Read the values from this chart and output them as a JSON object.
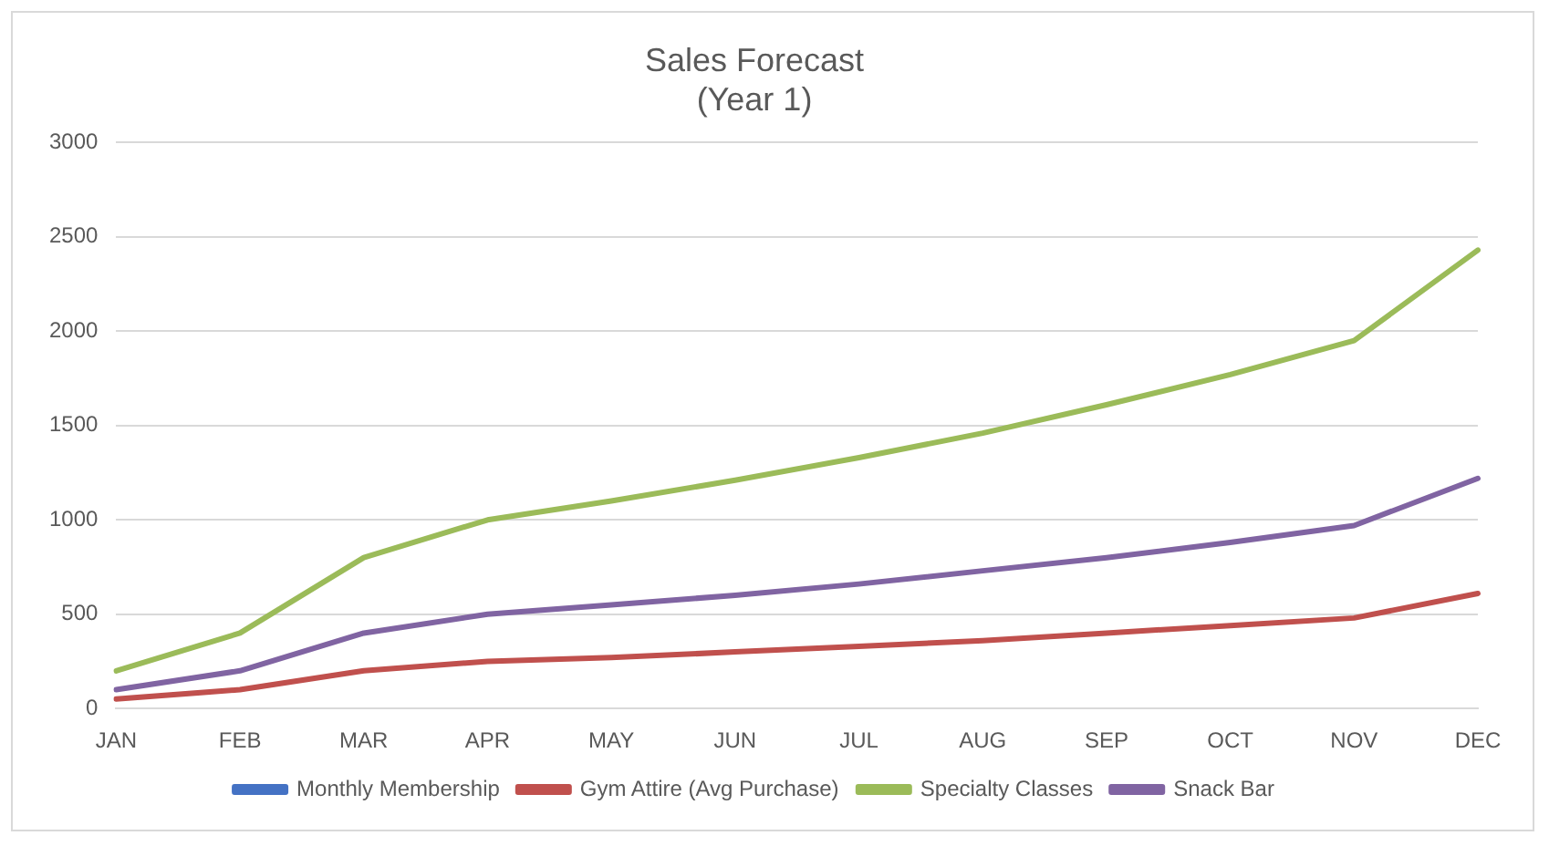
{
  "chart_data": {
    "type": "line",
    "title": [
      "Sales Forecast",
      "(Year 1)"
    ],
    "categories": [
      "JAN",
      "FEB",
      "MAR",
      "APR",
      "MAY",
      "JUN",
      "JUL",
      "AUG",
      "SEP",
      "OCT",
      "NOV",
      "DEC"
    ],
    "series": [
      {
        "name": "Monthly Membership",
        "color": "#4472c4",
        "values": [
          null,
          null,
          null,
          null,
          null,
          null,
          null,
          null,
          null,
          null,
          null,
          null
        ]
      },
      {
        "name": "Gym Attire (Avg Purchase)",
        "color": "#c0504d",
        "values": [
          50,
          100,
          200,
          250,
          270,
          300,
          330,
          360,
          400,
          440,
          480,
          610
        ]
      },
      {
        "name": "Specialty Classes",
        "color": "#9bbb59",
        "values": [
          200,
          400,
          800,
          1000,
          1100,
          1210,
          1330,
          1460,
          1610,
          1770,
          1950,
          2430
        ]
      },
      {
        "name": "Snack Bar",
        "color": "#8064a2",
        "values": [
          100,
          200,
          400,
          500,
          550,
          600,
          660,
          730,
          800,
          880,
          970,
          1220
        ]
      }
    ],
    "ylim": [
      0,
      3000
    ],
    "yticks": [
      0,
      500,
      1000,
      1500,
      2000,
      2500,
      3000
    ],
    "grid": "y",
    "legend": "bottom",
    "marker": "none",
    "line_style": "solid"
  }
}
